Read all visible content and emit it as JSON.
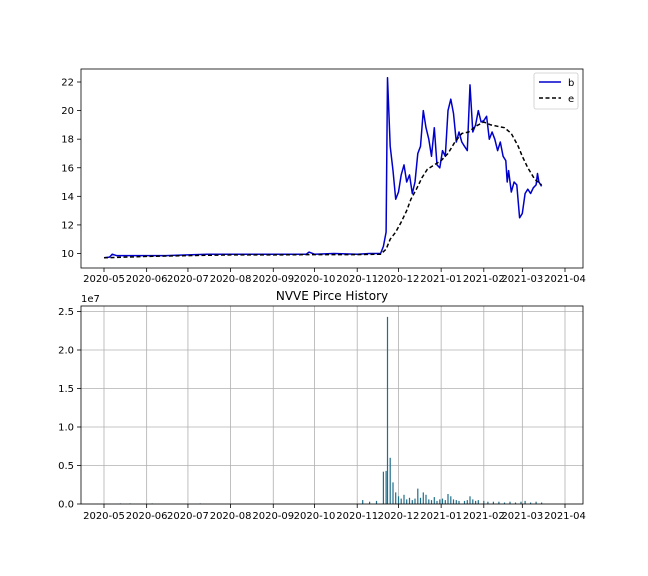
{
  "chart_data": [
    {
      "type": "line",
      "title": "",
      "xlabel": "",
      "ylabel": "",
      "x_ticks": [
        "2020-05",
        "2020-06",
        "2020-07",
        "2020-08",
        "2020-09",
        "2020-10",
        "2020-11",
        "2020-12",
        "2021-01",
        "2021-02",
        "2021-03",
        "2021-04"
      ],
      "y_ticks": [
        "10",
        "12",
        "14",
        "16",
        "18",
        "20",
        "22"
      ],
      "ylim": [
        9.2,
        23.0
      ],
      "grid": false,
      "legend_position": "top-right",
      "series": [
        {
          "name": "b",
          "color": "#0000cc",
          "style": "solid",
          "points": [
            [
              "2020-05-01",
              9.7
            ],
            [
              "2020-05-05",
              9.75
            ],
            [
              "2020-05-07",
              9.95
            ],
            [
              "2020-05-10",
              9.85
            ],
            [
              "2020-05-20",
              9.85
            ],
            [
              "2020-06-01",
              9.85
            ],
            [
              "2020-06-15",
              9.85
            ],
            [
              "2020-07-01",
              9.9
            ],
            [
              "2020-07-15",
              9.95
            ],
            [
              "2020-08-01",
              9.95
            ],
            [
              "2020-08-15",
              9.95
            ],
            [
              "2020-09-01",
              9.95
            ],
            [
              "2020-09-15",
              9.95
            ],
            [
              "2020-09-25",
              9.95
            ],
            [
              "2020-09-27",
              10.1
            ],
            [
              "2020-10-01",
              9.95
            ],
            [
              "2020-10-15",
              10.0
            ],
            [
              "2020-11-01",
              9.95
            ],
            [
              "2020-11-10",
              10.0
            ],
            [
              "2020-11-18",
              10.0
            ],
            [
              "2020-11-20",
              10.5
            ],
            [
              "2020-11-22",
              11.5
            ],
            [
              "2020-11-23",
              22.3
            ],
            [
              "2020-11-25",
              17.5
            ],
            [
              "2020-11-27",
              15.8
            ],
            [
              "2020-11-29",
              13.8
            ],
            [
              "2020-12-01",
              14.3
            ],
            [
              "2020-12-03",
              15.5
            ],
            [
              "2020-12-05",
              16.2
            ],
            [
              "2020-12-07",
              15.0
            ],
            [
              "2020-12-09",
              15.5
            ],
            [
              "2020-12-11",
              14.2
            ],
            [
              "2020-12-13",
              15.0
            ],
            [
              "2020-12-15",
              17.0
            ],
            [
              "2020-12-17",
              17.5
            ],
            [
              "2020-12-19",
              20.0
            ],
            [
              "2020-12-21",
              18.8
            ],
            [
              "2020-12-23",
              18.0
            ],
            [
              "2020-12-25",
              16.8
            ],
            [
              "2020-12-27",
              18.8
            ],
            [
              "2020-12-29",
              16.2
            ],
            [
              "2020-12-31",
              16.0
            ],
            [
              "2021-01-02",
              17.2
            ],
            [
              "2021-01-04",
              16.8
            ],
            [
              "2021-01-06",
              20.0
            ],
            [
              "2021-01-08",
              20.8
            ],
            [
              "2021-01-10",
              19.8
            ],
            [
              "2021-01-12",
              17.8
            ],
            [
              "2021-01-14",
              18.5
            ],
            [
              "2021-01-16",
              17.8
            ],
            [
              "2021-01-18",
              17.5
            ],
            [
              "2021-01-20",
              17.2
            ],
            [
              "2021-01-22",
              21.8
            ],
            [
              "2021-01-24",
              18.5
            ],
            [
              "2021-01-26",
              19.0
            ],
            [
              "2021-01-28",
              20.0
            ],
            [
              "2021-01-30",
              19.2
            ],
            [
              "2021-02-01",
              19.3
            ],
            [
              "2021-02-03",
              19.6
            ],
            [
              "2021-02-05",
              18.0
            ],
            [
              "2021-02-07",
              18.5
            ],
            [
              "2021-02-09",
              18.0
            ],
            [
              "2021-02-11",
              17.2
            ],
            [
              "2021-02-13",
              17.8
            ],
            [
              "2021-02-15",
              16.8
            ],
            [
              "2021-02-17",
              16.5
            ],
            [
              "2021-02-18",
              15.0
            ],
            [
              "2021-02-19",
              15.8
            ],
            [
              "2021-02-21",
              14.3
            ],
            [
              "2021-02-23",
              15.0
            ],
            [
              "2021-02-25",
              14.8
            ],
            [
              "2021-02-27",
              12.5
            ],
            [
              "2021-03-01",
              12.8
            ],
            [
              "2021-03-03",
              14.2
            ],
            [
              "2021-03-05",
              14.5
            ],
            [
              "2021-03-07",
              14.2
            ],
            [
              "2021-03-09",
              14.6
            ],
            [
              "2021-03-11",
              14.8
            ],
            [
              "2021-03-12",
              15.6
            ],
            [
              "2021-03-13",
              15.0
            ],
            [
              "2021-03-15",
              14.7
            ]
          ]
        },
        {
          "name": "e",
          "color": "#000000",
          "style": "dashed",
          "points": [
            [
              "2020-05-01",
              9.7
            ],
            [
              "2020-06-01",
              9.8
            ],
            [
              "2020-07-01",
              9.85
            ],
            [
              "2020-08-01",
              9.9
            ],
            [
              "2020-09-01",
              9.9
            ],
            [
              "2020-10-01",
              9.92
            ],
            [
              "2020-11-01",
              9.92
            ],
            [
              "2020-11-18",
              9.95
            ],
            [
              "2020-11-22",
              10.3
            ],
            [
              "2020-11-25",
              11.0
            ],
            [
              "2020-11-29",
              11.5
            ],
            [
              "2020-12-03",
              12.2
            ],
            [
              "2020-12-07",
              13.0
            ],
            [
              "2020-12-10",
              13.8
            ],
            [
              "2020-12-14",
              14.5
            ],
            [
              "2020-12-18",
              15.3
            ],
            [
              "2020-12-22",
              15.9
            ],
            [
              "2020-12-27",
              16.2
            ],
            [
              "2021-01-01",
              16.5
            ],
            [
              "2021-01-06",
              17.0
            ],
            [
              "2021-01-11",
              17.8
            ],
            [
              "2021-01-16",
              18.4
            ],
            [
              "2021-01-21",
              18.5
            ],
            [
              "2021-01-26",
              18.9
            ],
            [
              "2021-02-01",
              19.2
            ],
            [
              "2021-02-06",
              19.0
            ],
            [
              "2021-02-11",
              18.9
            ],
            [
              "2021-02-16",
              18.8
            ],
            [
              "2021-02-21",
              18.4
            ],
            [
              "2021-02-26",
              17.5
            ],
            [
              "2021-03-01",
              16.8
            ],
            [
              "2021-03-05",
              16.0
            ],
            [
              "2021-03-10",
              15.2
            ],
            [
              "2021-03-15",
              14.8
            ]
          ]
        }
      ]
    },
    {
      "type": "bar",
      "title": "NVVE Pirce History",
      "xlabel": "",
      "ylabel": "",
      "y_scale_label": "1e7",
      "x_ticks": [
        "2020-05",
        "2020-06",
        "2020-07",
        "2020-08",
        "2020-09",
        "2020-10",
        "2020-11",
        "2020-12",
        "2021-01",
        "2021-02",
        "2021-03",
        "2021-04"
      ],
      "y_ticks": [
        "0.0",
        "0.5",
        "1.0",
        "1.5",
        "2.0",
        "2.5"
      ],
      "ylim": [
        0,
        25500000
      ],
      "grid": true,
      "bar_color": "#1f6f8b",
      "points": [
        [
          "2020-05-13",
          50000
        ],
        [
          "2020-05-20",
          40000
        ],
        [
          "2020-06-05",
          30000
        ],
        [
          "2020-07-10",
          20000
        ],
        [
          "2020-11-05",
          500000
        ],
        [
          "2020-11-10",
          300000
        ],
        [
          "2020-11-15",
          400000
        ],
        [
          "2020-11-20",
          4200000
        ],
        [
          "2020-11-22",
          4300000
        ],
        [
          "2020-11-23",
          24300000
        ],
        [
          "2020-11-25",
          6000000
        ],
        [
          "2020-11-27",
          2800000
        ],
        [
          "2020-11-29",
          1500000
        ],
        [
          "2020-12-01",
          1000000
        ],
        [
          "2020-12-03",
          700000
        ],
        [
          "2020-12-05",
          1200000
        ],
        [
          "2020-12-07",
          600000
        ],
        [
          "2020-12-09",
          800000
        ],
        [
          "2020-12-11",
          500000
        ],
        [
          "2020-12-13",
          700000
        ],
        [
          "2020-12-15",
          2000000
        ],
        [
          "2020-12-17",
          800000
        ],
        [
          "2020-12-19",
          1500000
        ],
        [
          "2020-12-21",
          1200000
        ],
        [
          "2020-12-23",
          600000
        ],
        [
          "2020-12-25",
          500000
        ],
        [
          "2020-12-27",
          900000
        ],
        [
          "2020-12-29",
          400000
        ],
        [
          "2020-12-31",
          600000
        ],
        [
          "2021-01-02",
          700000
        ],
        [
          "2021-01-04",
          500000
        ],
        [
          "2021-01-06",
          1300000
        ],
        [
          "2021-01-08",
          1000000
        ],
        [
          "2021-01-10",
          600000
        ],
        [
          "2021-01-12",
          500000
        ],
        [
          "2021-01-14",
          400000
        ],
        [
          "2021-01-18",
          400000
        ],
        [
          "2021-01-20",
          500000
        ],
        [
          "2021-01-22",
          1000000
        ],
        [
          "2021-01-24",
          600000
        ],
        [
          "2021-01-26",
          400000
        ],
        [
          "2021-01-28",
          500000
        ],
        [
          "2021-02-01",
          400000
        ],
        [
          "2021-02-04",
          300000
        ],
        [
          "2021-02-08",
          300000
        ],
        [
          "2021-02-12",
          300000
        ],
        [
          "2021-02-16",
          200000
        ],
        [
          "2021-02-20",
          300000
        ],
        [
          "2021-02-24",
          200000
        ],
        [
          "2021-02-28",
          300000
        ],
        [
          "2021-03-03",
          400000
        ],
        [
          "2021-03-07",
          200000
        ],
        [
          "2021-03-11",
          300000
        ],
        [
          "2021-03-15",
          200000
        ]
      ]
    }
  ]
}
